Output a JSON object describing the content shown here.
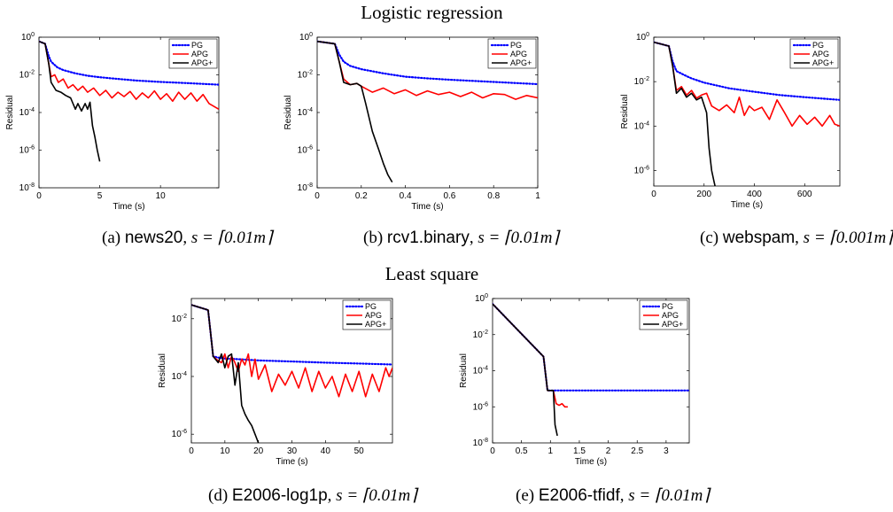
{
  "titles": {
    "top": "Logistic regression",
    "bottom": "Least square"
  },
  "colors": {
    "PG": "#0000ff",
    "APG": "#ff0000",
    "APG+": "#000000"
  },
  "chart_data": [
    {
      "type": "line",
      "caption": {
        "prefix": "(a) ",
        "dataset": "news20",
        "sep": ", ",
        "s_expr": "s = ⌈0.01m⌉"
      },
      "xlabel": "Time (s)",
      "ylabel": "Residual",
      "yscale": "log",
      "xlim": [
        0,
        14.8
      ],
      "ylim": [
        1e-08,
        1
      ],
      "xticks": [
        0,
        5,
        10
      ],
      "xtick_labels": [
        "0",
        "5",
        "10"
      ],
      "yticks": [
        1e-08,
        1e-06,
        0.0001,
        0.01,
        1
      ],
      "legend": "top-right",
      "series": [
        {
          "name": "PG",
          "style": "dotted",
          "x": [
            0,
            0.5,
            0.8,
            1.0,
            1.5,
            2,
            3,
            4,
            5,
            6,
            8,
            10,
            12,
            14.8
          ],
          "y": [
            0.6,
            0.45,
            0.1,
            0.05,
            0.025,
            0.018,
            0.012,
            0.009,
            0.0075,
            0.0065,
            0.005,
            0.0042,
            0.0037,
            0.003
          ]
        },
        {
          "name": "APG",
          "style": "solid",
          "x": [
            0,
            0.5,
            0.8,
            1.0,
            1.3,
            1.6,
            2.0,
            2.4,
            2.8,
            3.2,
            3.6,
            4.0,
            4.5,
            5.0,
            5.5,
            6.0,
            6.5,
            7.0,
            7.5,
            8.0,
            8.5,
            9.0,
            9.5,
            10.0,
            10.5,
            11.0,
            11.5,
            12.0,
            12.5,
            13.0,
            13.5,
            14.0,
            14.8
          ],
          "y": [
            0.6,
            0.45,
            0.04,
            0.008,
            0.01,
            0.004,
            0.006,
            0.002,
            0.003,
            0.0015,
            0.0025,
            0.0012,
            0.002,
            0.0008,
            0.0015,
            0.0006,
            0.0012,
            0.0007,
            0.0013,
            0.0005,
            0.0011,
            0.0006,
            0.0014,
            0.0005,
            0.001,
            0.0004,
            0.0012,
            0.0005,
            0.0011,
            0.0004,
            0.0009,
            0.0003,
            0.00015
          ]
        },
        {
          "name": "APG+",
          "style": "solid",
          "x": [
            0,
            0.5,
            0.8,
            1.0,
            1.4,
            1.8,
            2.2,
            2.6,
            3.0,
            3.2,
            3.5,
            3.8,
            4.0,
            4.2,
            4.4,
            4.6,
            4.8,
            5.0
          ],
          "y": [
            0.6,
            0.45,
            0.04,
            0.004,
            0.0015,
            0.0012,
            0.0008,
            0.0006,
            0.00015,
            0.0003,
            0.00012,
            0.0003,
            0.00015,
            0.00035,
            2e-05,
            5e-06,
            1e-06,
            2.5e-07
          ]
        }
      ]
    },
    {
      "type": "line",
      "caption": {
        "prefix": "(b) ",
        "dataset": "rcv1.binary",
        "sep": ", ",
        "s_expr": "s = ⌈0.01m⌉"
      },
      "xlabel": "Time (s)",
      "ylabel": "Residual",
      "yscale": "log",
      "xlim": [
        0,
        1
      ],
      "ylim": [
        1e-08,
        1
      ],
      "xticks": [
        0,
        0.2,
        0.4,
        0.6,
        0.8,
        1
      ],
      "xtick_labels": [
        "0",
        "0.2",
        "0.4",
        "0.6",
        "0.8",
        "1"
      ],
      "yticks": [
        1e-08,
        1e-06,
        0.0001,
        0.01,
        1
      ],
      "legend": "top-right",
      "series": [
        {
          "name": "PG",
          "style": "dotted",
          "x": [
            0,
            0.08,
            0.1,
            0.12,
            0.15,
            0.2,
            0.3,
            0.4,
            0.5,
            0.6,
            0.8,
            1.0
          ],
          "y": [
            0.6,
            0.45,
            0.12,
            0.05,
            0.03,
            0.02,
            0.012,
            0.008,
            0.0065,
            0.0055,
            0.0042,
            0.0032
          ]
        },
        {
          "name": "APG",
          "style": "solid",
          "x": [
            0,
            0.08,
            0.1,
            0.12,
            0.15,
            0.18,
            0.2,
            0.25,
            0.3,
            0.35,
            0.4,
            0.45,
            0.5,
            0.55,
            0.6,
            0.65,
            0.7,
            0.75,
            0.8,
            0.85,
            0.9,
            0.95,
            1.0
          ],
          "y": [
            0.6,
            0.45,
            0.05,
            0.006,
            0.003,
            0.0035,
            0.0025,
            0.0012,
            0.002,
            0.001,
            0.0016,
            0.0008,
            0.0014,
            0.0009,
            0.0012,
            0.0007,
            0.0012,
            0.0006,
            0.001,
            0.0009,
            0.0005,
            0.0008,
            0.0006
          ]
        },
        {
          "name": "APG+",
          "style": "solid",
          "x": [
            0,
            0.08,
            0.1,
            0.12,
            0.15,
            0.18,
            0.2,
            0.22,
            0.25,
            0.28,
            0.3,
            0.32,
            0.34
          ],
          "y": [
            0.6,
            0.45,
            0.05,
            0.004,
            0.003,
            0.0035,
            0.0025,
            0.0003,
            1e-05,
            1e-06,
            2e-07,
            5e-08,
            2e-08
          ]
        }
      ]
    },
    {
      "type": "line",
      "caption": {
        "prefix": "(c) ",
        "dataset": "webspam",
        "sep": ", ",
        "s_expr": "s = ⌈0.001m⌉"
      },
      "xlabel": "Time (s)",
      "ylabel": "Residual",
      "yscale": "log",
      "xlim": [
        0,
        740
      ],
      "ylim": [
        2e-07,
        1
      ],
      "xticks": [
        0,
        200,
        400,
        600
      ],
      "xtick_labels": [
        "0",
        "200",
        "400",
        "600"
      ],
      "yticks": [
        1e-06,
        0.0001,
        0.01,
        1
      ],
      "legend": "top-right",
      "series": [
        {
          "name": "PG",
          "style": "dotted",
          "x": [
            0,
            60,
            75,
            90,
            120,
            150,
            200,
            300,
            400,
            500,
            600,
            740
          ],
          "y": [
            0.6,
            0.4,
            0.08,
            0.03,
            0.02,
            0.014,
            0.009,
            0.005,
            0.0035,
            0.0025,
            0.002,
            0.0015
          ]
        },
        {
          "name": "APG",
          "style": "solid",
          "x": [
            0,
            60,
            75,
            90,
            110,
            130,
            150,
            170,
            190,
            210,
            230,
            260,
            290,
            320,
            340,
            360,
            380,
            400,
            430,
            460,
            490,
            520,
            550,
            580,
            610,
            640,
            670,
            700,
            720,
            740
          ],
          "y": [
            0.6,
            0.4,
            0.05,
            0.004,
            0.006,
            0.0025,
            0.004,
            0.0018,
            0.0025,
            0.003,
            0.0008,
            0.0005,
            0.0009,
            0.0004,
            0.002,
            0.0003,
            0.0008,
            0.0005,
            0.0007,
            0.0002,
            0.0015,
            0.0004,
            0.0001,
            0.0003,
            0.00012,
            0.00025,
            0.0001,
            0.0003,
            0.00012,
            0.0001
          ]
        },
        {
          "name": "APG+",
          "style": "solid",
          "x": [
            0,
            60,
            75,
            90,
            110,
            130,
            150,
            170,
            190,
            210,
            220,
            230,
            240,
            250
          ],
          "y": [
            0.6,
            0.4,
            0.05,
            0.003,
            0.005,
            0.002,
            0.003,
            0.0015,
            0.002,
            0.0004,
            1e-05,
            1e-06,
            3e-07,
            1e-07
          ]
        }
      ]
    },
    {
      "type": "line",
      "caption": {
        "prefix": "(d) ",
        "dataset": "E2006-log1p",
        "sep": ", ",
        "s_expr": "s = ⌈0.01m⌉"
      },
      "xlabel": "Time (s)",
      "ylabel": "Residual",
      "yscale": "log",
      "xlim": [
        0,
        60
      ],
      "ylim": [
        5e-07,
        0.05
      ],
      "xticks": [
        0,
        10,
        20,
        30,
        40,
        50
      ],
      "xtick_labels": [
        "0",
        "10",
        "20",
        "30",
        "40",
        "50"
      ],
      "yticks": [
        1e-06,
        0.0001,
        0.01
      ],
      "legend": "top-right",
      "series": [
        {
          "name": "PG",
          "style": "dotted",
          "x": [
            0,
            5,
            6.5,
            8,
            10,
            15,
            20,
            30,
            40,
            50,
            60
          ],
          "y": [
            0.03,
            0.02,
            0.0005,
            0.00045,
            0.00042,
            0.00039,
            0.00036,
            0.00033,
            0.0003,
            0.00028,
            0.00026
          ]
        },
        {
          "name": "APG",
          "style": "solid",
          "x": [
            0,
            5,
            6.5,
            8,
            9,
            10,
            11,
            12,
            13,
            14,
            15,
            16,
            17,
            18,
            19,
            20,
            22,
            24,
            26,
            28,
            30,
            32,
            34,
            36,
            38,
            40,
            42,
            44,
            46,
            48,
            50,
            52,
            54,
            56,
            58,
            59,
            60
          ],
          "y": [
            0.03,
            0.02,
            0.0005,
            0.00035,
            0.0003,
            0.0006,
            0.0002,
            0.0005,
            0.0003,
            0.00015,
            0.0004,
            0.00025,
            0.0006,
            0.0001,
            0.0004,
            8e-05,
            0.00025,
            3e-05,
            0.00012,
            5e-05,
            0.00015,
            4e-05,
            0.0002,
            3e-05,
            0.00015,
            4e-05,
            0.0001,
            2e-05,
            0.00012,
            3e-05,
            0.00015,
            2e-05,
            0.00012,
            3e-05,
            0.0002,
            0.0001,
            0.0002
          ]
        },
        {
          "name": "APG+",
          "style": "solid",
          "x": [
            0,
            5,
            6.5,
            8,
            9,
            10,
            11,
            12,
            13,
            14,
            15,
            16,
            17,
            18,
            19,
            20
          ],
          "y": [
            0.03,
            0.02,
            0.0005,
            0.0003,
            0.0006,
            0.0002,
            0.0005,
            0.0006,
            5e-05,
            0.0003,
            1e-05,
            5e-06,
            3e-06,
            2e-06,
            1e-06,
            5e-07
          ]
        }
      ]
    },
    {
      "type": "line",
      "caption": {
        "prefix": "(e) ",
        "dataset": "E2006-tfidf",
        "sep": ", ",
        "s_expr": "s = ⌈0.01m⌉"
      },
      "xlabel": "Time (s)",
      "ylabel": "Residual",
      "yscale": "log",
      "xlim": [
        0,
        3.4
      ],
      "ylim": [
        1e-08,
        1
      ],
      "xticks": [
        0,
        0.5,
        1,
        1.5,
        2,
        2.5,
        3
      ],
      "xtick_labels": [
        "0",
        "0.5",
        "1",
        "1.5",
        "2",
        "2.5",
        "3"
      ],
      "yticks": [
        1e-08,
        1e-06,
        0.0001,
        0.01,
        1
      ],
      "legend": "top-right",
      "series": [
        {
          "name": "PG",
          "style": "dotted",
          "x": [
            0,
            0.88,
            0.95,
            1.1,
            3.4
          ],
          "y": [
            0.5,
            0.0006,
            8e-06,
            8e-06,
            8e-06
          ]
        },
        {
          "name": "APG",
          "style": "solid",
          "x": [
            0,
            0.88,
            0.95,
            1.05,
            1.1,
            1.15,
            1.2,
            1.25,
            1.3
          ],
          "y": [
            0.5,
            0.0006,
            8e-06,
            8e-06,
            1.5e-06,
            1.2e-06,
            1.5e-06,
            1e-06,
            1e-06
          ]
        },
        {
          "name": "APG+",
          "style": "solid",
          "x": [
            0,
            0.88,
            0.95,
            1.05,
            1.08,
            1.12
          ],
          "y": [
            0.5,
            0.0006,
            8e-06,
            8e-06,
            1e-07,
            2.5e-08
          ]
        }
      ]
    }
  ]
}
